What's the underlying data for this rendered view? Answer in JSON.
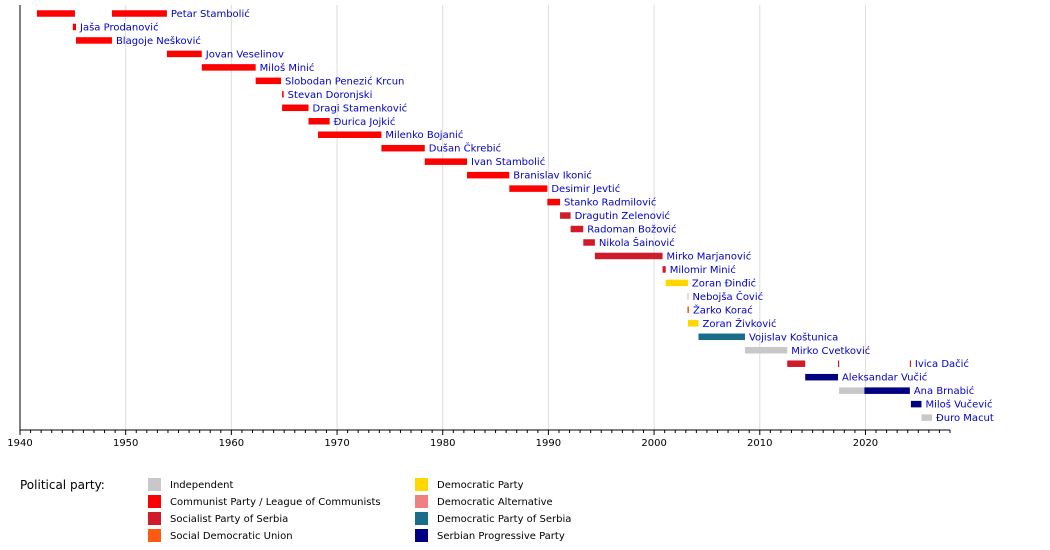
{
  "chart_data": {
    "type": "bar",
    "orientation": "horizontal-timeline",
    "xlim": [
      1940,
      2028
    ],
    "x_ticks": [
      "1940",
      "1950",
      "1960",
      "1970",
      "1980",
      "1990",
      "2000",
      "2010",
      "2020"
    ],
    "grid": "vertical",
    "legend": {
      "title": "Political party:",
      "position": "bottom-left",
      "entries": [
        {
          "key": "ind",
          "label": "Independent",
          "color": "#c8c8c8"
        },
        {
          "key": "com",
          "label": "Communist Party / League of Communists",
          "color": "#ff0000"
        },
        {
          "key": "sps",
          "label": "Socialist Party of Serbia",
          "color": "#d01c2a"
        },
        {
          "key": "sdu",
          "label": "Social Democratic Union",
          "color": "#ff5a14"
        },
        {
          "key": "ds",
          "label": "Democratic Party",
          "color": "#ffd700"
        },
        {
          "key": "da",
          "label": "Democratic Alternative",
          "color": "#f08080"
        },
        {
          "key": "dss",
          "label": "Democratic Party of Serbia",
          "color": "#1a6d8a"
        },
        {
          "key": "sns",
          "label": "Serbian Progressive Party",
          "color": "#000080"
        }
      ]
    },
    "rows": [
      {
        "name": "Petar Stambolić",
        "segments": [
          {
            "start": 1941.6,
            "end": 1945.2,
            "party": "com"
          },
          {
            "start": 1948.7,
            "end": 1953.9,
            "party": "com"
          }
        ]
      },
      {
        "name": "Jaša Prodanović",
        "segments": [
          {
            "start": 1945.0,
            "end": 1945.3,
            "party": "com"
          }
        ]
      },
      {
        "name": "Blagoje Nešković",
        "segments": [
          {
            "start": 1945.3,
            "end": 1948.7,
            "party": "com"
          }
        ]
      },
      {
        "name": "Jovan Veselinov",
        "segments": [
          {
            "start": 1953.9,
            "end": 1957.2,
            "party": "com"
          }
        ]
      },
      {
        "name": "Miloš Minić",
        "segments": [
          {
            "start": 1957.2,
            "end": 1962.3,
            "party": "com"
          }
        ]
      },
      {
        "name": "Slobodan Penezić Krcun",
        "segments": [
          {
            "start": 1962.3,
            "end": 1964.7,
            "party": "com"
          }
        ]
      },
      {
        "name": "Stevan Doronjski",
        "segments": [
          {
            "start": 1964.8,
            "end": 1964.95,
            "party": "com"
          }
        ]
      },
      {
        "name": "Dragi Stamenković",
        "segments": [
          {
            "start": 1964.8,
            "end": 1967.3,
            "party": "com"
          }
        ]
      },
      {
        "name": "Đurica Jojkić",
        "segments": [
          {
            "start": 1967.3,
            "end": 1969.3,
            "party": "com"
          }
        ]
      },
      {
        "name": "Milenko Bojanić",
        "segments": [
          {
            "start": 1968.2,
            "end": 1974.2,
            "party": "com"
          }
        ]
      },
      {
        "name": "Dušan Čkrebić",
        "segments": [
          {
            "start": 1974.2,
            "end": 1978.3,
            "party": "com"
          }
        ]
      },
      {
        "name": "Ivan Stambolić",
        "segments": [
          {
            "start": 1978.3,
            "end": 1982.3,
            "party": "com"
          }
        ]
      },
      {
        "name": "Branislav Ikonić",
        "segments": [
          {
            "start": 1982.3,
            "end": 1986.3,
            "party": "com"
          }
        ]
      },
      {
        "name": "Desimir Jevtić",
        "segments": [
          {
            "start": 1986.3,
            "end": 1989.9,
            "party": "com"
          }
        ]
      },
      {
        "name": "Stanko Radmilović",
        "segments": [
          {
            "start": 1989.9,
            "end": 1991.1,
            "party": "com"
          }
        ]
      },
      {
        "name": "Dragutin Zelenović",
        "segments": [
          {
            "start": 1991.1,
            "end": 1992.1,
            "party": "sps"
          }
        ]
      },
      {
        "name": "Radoman Božović",
        "segments": [
          {
            "start": 1992.1,
            "end": 1993.3,
            "party": "sps"
          }
        ]
      },
      {
        "name": "Nikola Šainović",
        "segments": [
          {
            "start": 1993.3,
            "end": 1994.4,
            "party": "sps"
          }
        ]
      },
      {
        "name": "Mirko Marjanović",
        "segments": [
          {
            "start": 1994.4,
            "end": 2000.8,
            "party": "sps"
          }
        ]
      },
      {
        "name": "Milomir Minić",
        "segments": [
          {
            "start": 2000.8,
            "end": 2001.1,
            "party": "sps"
          }
        ]
      },
      {
        "name": "Zoran Đinđić",
        "segments": [
          {
            "start": 2001.1,
            "end": 2003.2,
            "party": "ds"
          }
        ]
      },
      {
        "name": "Nebojša Čović",
        "segments": [
          {
            "start": 2003.15,
            "end": 2003.25,
            "party": "ind"
          }
        ]
      },
      {
        "name": "Žarko Korać",
        "segments": [
          {
            "start": 2003.15,
            "end": 2003.3,
            "party": "sdu"
          }
        ]
      },
      {
        "name": "Zoran Živković",
        "segments": [
          {
            "start": 2003.2,
            "end": 2004.2,
            "party": "ds"
          }
        ]
      },
      {
        "name": "Vojislav Koštunica",
        "segments": [
          {
            "start": 2004.2,
            "end": 2008.6,
            "party": "dss"
          }
        ]
      },
      {
        "name": "Mirko Cvetković",
        "segments": [
          {
            "start": 2008.6,
            "end": 2012.6,
            "party": "ind"
          }
        ]
      },
      {
        "name": "Ivica Dačić",
        "segments": [
          {
            "start": 2012.6,
            "end": 2014.3,
            "party": "sps"
          },
          {
            "start": 2017.4,
            "end": 2017.5,
            "party": "sps"
          },
          {
            "start": 2024.2,
            "end": 2024.3,
            "party": "sps"
          }
        ]
      },
      {
        "name": "Aleksandar Vučić",
        "segments": [
          {
            "start": 2014.3,
            "end": 2017.4,
            "party": "sns"
          }
        ]
      },
      {
        "name": "Ana Brnabić",
        "segments": [
          {
            "start": 2017.5,
            "end": 2019.9,
            "party": "ind"
          },
          {
            "start": 2019.9,
            "end": 2024.2,
            "party": "sns"
          }
        ]
      },
      {
        "name": "Miloš Vučević",
        "segments": [
          {
            "start": 2024.3,
            "end": 2025.3,
            "party": "sns"
          }
        ]
      },
      {
        "name": "Đuro Macut",
        "segments": [
          {
            "start": 2025.3,
            "end": 2026.3,
            "party": "ind"
          }
        ]
      }
    ]
  }
}
